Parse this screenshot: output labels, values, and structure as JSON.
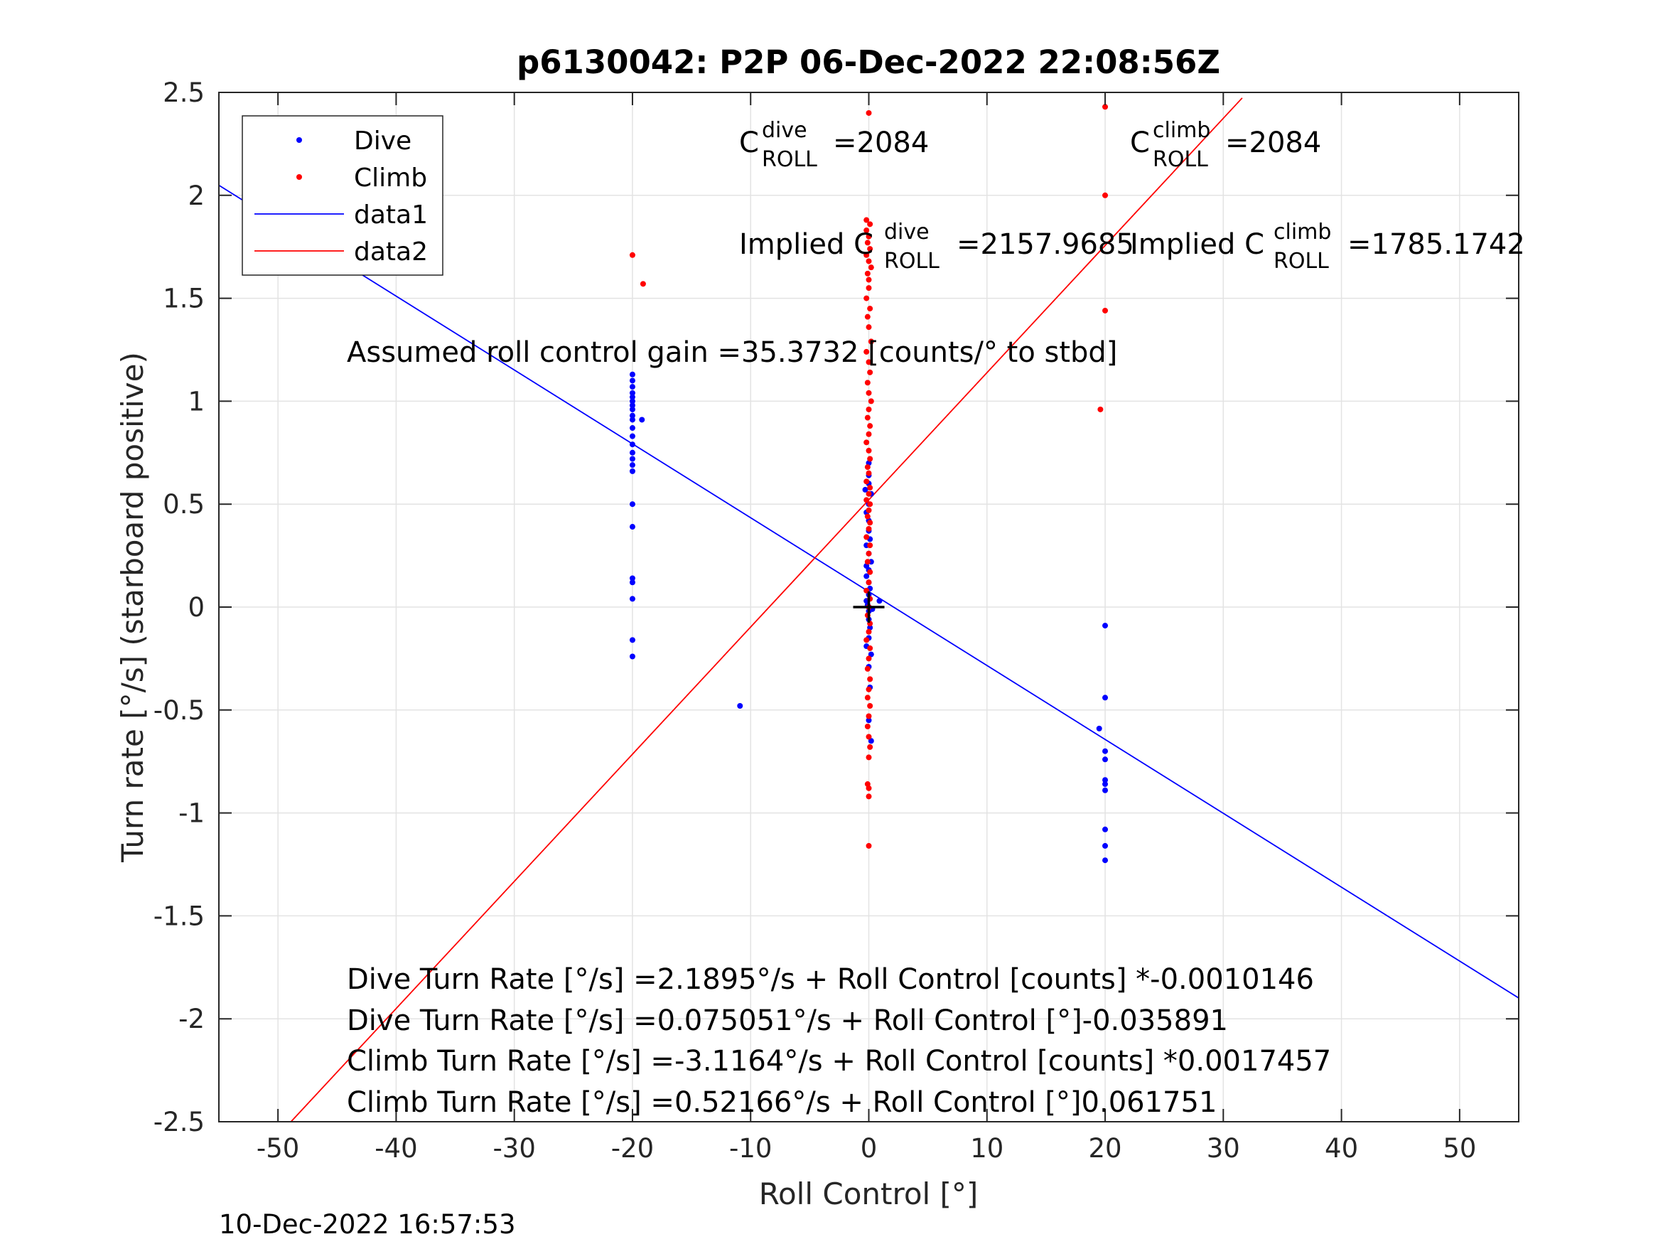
{
  "chart_data": {
    "type": "scatter",
    "title": "p6130042: P2P 06-Dec-2022 22:08:56Z",
    "xlabel": "Roll Control [°]",
    "ylabel": "Turn rate [°/s] (starboard positive)",
    "xlim": [
      -55,
      55
    ],
    "ylim": [
      -2.5,
      2.5
    ],
    "xticks": [
      -50,
      -40,
      -30,
      -20,
      -10,
      0,
      10,
      20,
      30,
      40,
      50
    ],
    "xtick_labels": [
      "-50",
      "-40",
      "-30",
      "-20",
      "-10",
      "0",
      "10",
      "20",
      "30",
      "40",
      "50"
    ],
    "yticks": [
      2.5,
      2,
      1.5,
      1,
      0.5,
      0,
      -0.5,
      -1,
      -1.5,
      -2,
      -2.5
    ],
    "ytick_labels": [
      "2.5",
      "2",
      "1.5",
      "1",
      "0.5",
      "0",
      "-0.5",
      "-1",
      "-1.5",
      "-2",
      "-2.5"
    ],
    "grid": true,
    "legend_position": "top-left",
    "series": [
      {
        "name": "Dive",
        "kind": "points",
        "color": "#0000ff",
        "points": [
          [
            -20,
            1.13
          ],
          [
            -20,
            1.1
          ],
          [
            -20,
            1.07
          ],
          [
            -20,
            1.04
          ],
          [
            -20,
            1.02
          ],
          [
            -20,
            1.0
          ],
          [
            -20,
            0.98
          ],
          [
            -20,
            0.96
          ],
          [
            -20,
            0.93
          ],
          [
            -20,
            0.91
          ],
          [
            -19.2,
            0.91
          ],
          [
            -20,
            0.87
          ],
          [
            -20,
            0.83
          ],
          [
            -20,
            0.79
          ],
          [
            -20,
            0.75
          ],
          [
            -20,
            0.72
          ],
          [
            -20,
            0.69
          ],
          [
            -20,
            0.66
          ],
          [
            -20,
            0.5
          ],
          [
            -20,
            0.39
          ],
          [
            -20,
            0.14
          ],
          [
            -20,
            0.12
          ],
          [
            -20,
            0.04
          ],
          [
            -20,
            -0.16
          ],
          [
            -20,
            -0.24
          ],
          [
            -10.9,
            -0.48
          ],
          [
            0,
            0.7
          ],
          [
            0,
            0.64
          ],
          [
            0,
            0.6
          ],
          [
            -0.3,
            0.57
          ],
          [
            0.2,
            0.55
          ],
          [
            0,
            0.5
          ],
          [
            -0.2,
            0.46
          ],
          [
            0,
            0.42
          ],
          [
            0,
            0.37
          ],
          [
            0.1,
            0.33
          ],
          [
            -0.2,
            0.3
          ],
          [
            0,
            0.26
          ],
          [
            0.2,
            0.22
          ],
          [
            0,
            0.18
          ],
          [
            -0.2,
            0.15
          ],
          [
            0,
            0.12
          ],
          [
            0.1,
            0.09
          ],
          [
            0,
            0.06
          ],
          [
            -0.2,
            0.03
          ],
          [
            0.9,
            0.03
          ],
          [
            0,
            -0.02
          ],
          [
            0,
            -0.06
          ],
          [
            0.1,
            -0.1
          ],
          [
            0,
            -0.15
          ],
          [
            -0.2,
            -0.19
          ],
          [
            0.2,
            -0.23
          ],
          [
            0,
            -0.29
          ],
          [
            0.1,
            -0.39
          ],
          [
            0,
            -0.55
          ],
          [
            0.2,
            -0.65
          ],
          [
            0,
            0.0
          ],
          [
            0.3,
            -0.01
          ],
          [
            -0.1,
            0.01
          ],
          [
            -0.2,
            0.2
          ],
          [
            20,
            -0.09
          ],
          [
            20,
            -0.44
          ],
          [
            19.5,
            -0.59
          ],
          [
            20,
            -0.7
          ],
          [
            20,
            -0.74
          ],
          [
            20,
            -0.84
          ],
          [
            20,
            -0.86
          ],
          [
            20,
            -0.89
          ],
          [
            20,
            -1.08
          ],
          [
            20,
            -1.16
          ],
          [
            20,
            -1.23
          ]
        ]
      },
      {
        "name": "Climb",
        "kind": "points",
        "color": "#ff0000",
        "points": [
          [
            -20,
            1.71
          ],
          [
            -19.1,
            1.57
          ],
          [
            0,
            2.4
          ],
          [
            -0.2,
            1.88
          ],
          [
            0.1,
            1.86
          ],
          [
            -0.2,
            1.83
          ],
          [
            0,
            1.8
          ],
          [
            -0.1,
            1.77
          ],
          [
            0.1,
            1.74
          ],
          [
            -0.2,
            1.71
          ],
          [
            0,
            1.68
          ],
          [
            0.2,
            1.65
          ],
          [
            -0.1,
            1.62
          ],
          [
            0,
            1.59
          ],
          [
            0,
            1.55
          ],
          [
            -0.2,
            1.5
          ],
          [
            0.1,
            1.45
          ],
          [
            -0.1,
            1.41
          ],
          [
            0,
            1.36
          ],
          [
            0.2,
            1.29
          ],
          [
            -0.2,
            1.24
          ],
          [
            0,
            1.19
          ],
          [
            0.1,
            1.14
          ],
          [
            -0.1,
            1.09
          ],
          [
            0,
            1.04
          ],
          [
            0.2,
            1.0
          ],
          [
            0,
            0.96
          ],
          [
            -0.1,
            0.92
          ],
          [
            0.1,
            0.88
          ],
          [
            0,
            0.84
          ],
          [
            -0.2,
            0.8
          ],
          [
            0,
            0.76
          ],
          [
            0.1,
            0.72
          ],
          [
            -0.1,
            0.68
          ],
          [
            0,
            0.65
          ],
          [
            -0.2,
            0.61
          ],
          [
            0.1,
            0.58
          ],
          [
            0,
            0.55
          ],
          [
            -0.2,
            0.52
          ],
          [
            0.1,
            0.5
          ],
          [
            0,
            0.47
          ],
          [
            -0.1,
            0.44
          ],
          [
            0.1,
            0.41
          ],
          [
            0,
            0.38
          ],
          [
            -0.2,
            0.34
          ],
          [
            0.1,
            0.3
          ],
          [
            0,
            0.26
          ],
          [
            -0.1,
            0.22
          ],
          [
            0.1,
            0.17
          ],
          [
            0,
            0.12
          ],
          [
            -0.2,
            0.08
          ],
          [
            0.1,
            0.04
          ],
          [
            0,
            0.0
          ],
          [
            -0.1,
            -0.04
          ],
          [
            0.1,
            -0.08
          ],
          [
            0,
            -0.12
          ],
          [
            -0.2,
            -0.16
          ],
          [
            0.1,
            -0.2
          ],
          [
            0,
            -0.25
          ],
          [
            -0.1,
            -0.3
          ],
          [
            0.1,
            -0.35
          ],
          [
            0,
            -0.4
          ],
          [
            -0.1,
            -0.44
          ],
          [
            0.1,
            -0.48
          ],
          [
            0,
            -0.53
          ],
          [
            -0.1,
            -0.58
          ],
          [
            0,
            -0.63
          ],
          [
            0.1,
            -0.68
          ],
          [
            0,
            -0.73
          ],
          [
            -0.1,
            -0.86
          ],
          [
            0,
            -0.88
          ],
          [
            0,
            -0.92
          ],
          [
            0,
            -1.16
          ],
          [
            20,
            2.43
          ],
          [
            20,
            2.0
          ],
          [
            20,
            1.44
          ],
          [
            19.6,
            0.96
          ]
        ]
      },
      {
        "name": "data1",
        "kind": "line",
        "color": "#0000ff",
        "x": [
          -55,
          55
        ],
        "y": [
          2.049,
          -1.899
        ]
      },
      {
        "name": "data2",
        "kind": "line",
        "color": "#ff0000",
        "x": [
          -48.9,
          31.6
        ],
        "y": [
          -2.5,
          2.473
        ]
      }
    ],
    "marker": {
      "x": 0,
      "y": 0,
      "symbol": "+"
    },
    "annotations": {
      "c_dive": {
        "base": "C",
        "sup": "dive",
        "sub": "ROLL",
        "value": "=2084"
      },
      "c_climb": {
        "base": "C",
        "sup": "climb",
        "sub": "ROLL",
        "value": "=2084"
      },
      "implied_dive": {
        "prefix": "Implied C",
        "sup": "dive",
        "sub": "ROLL",
        "value": "=2157.9685"
      },
      "implied_climb": {
        "prefix": "Implied C",
        "sup": "climb",
        "sub": "ROLL",
        "value": "=1785.1742"
      },
      "gain": "Assumed roll control gain =35.3732 [counts/° to stbd]",
      "fit_lines": [
        "Dive Turn Rate [°/s] =2.1895°/s + Roll Control [counts] *-0.0010146",
        "Dive Turn Rate [°/s] =0.075051°/s + Roll Control [°]-0.035891",
        "Climb Turn Rate [°/s] =-3.1164°/s + Roll Control [counts] *0.0017457",
        "Climb Turn Rate [°/s] =0.52166°/s + Roll Control [°]0.061751"
      ]
    }
  },
  "timestamp": "10-Dec-2022 16:57:53"
}
